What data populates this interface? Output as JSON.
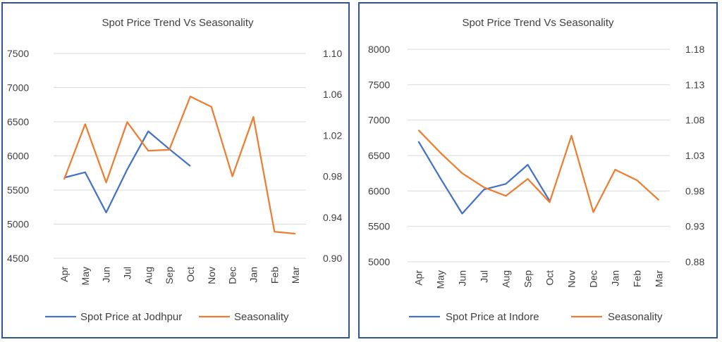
{
  "chart_data": [
    {
      "type": "line",
      "title": "Spot Price Trend Vs Seasonality",
      "categories": [
        "Apr",
        "May",
        "Jun",
        "Jul",
        "Aug",
        "Sep",
        "Oct",
        "Nov",
        "Dec",
        "Jan",
        "Feb",
        "Mar"
      ],
      "y_left": {
        "ticks": [
          "7500",
          "7000",
          "6500",
          "6000",
          "5500",
          "5000",
          "4500"
        ],
        "min": 4500,
        "max": 7500
      },
      "y_right": {
        "ticks": [
          "1.10",
          "1.06",
          "1.02",
          "0.98",
          "0.94",
          "0.90"
        ],
        "min": 0.9,
        "max": 1.1
      },
      "series": [
        {
          "name": "Spot Price at Jodhpur",
          "axis": "left",
          "color": "#4472c4",
          "values": [
            5680,
            5760,
            5170,
            5800,
            6360,
            6100,
            5850,
            null,
            null,
            null,
            null,
            null
          ]
        },
        {
          "name": "Seasonality",
          "axis": "right",
          "color": "#ed7d31",
          "values": [
            0.977,
            1.031,
            0.974,
            1.033,
            1.005,
            1.006,
            1.058,
            1.048,
            0.98,
            1.038,
            0.926,
            0.924
          ]
        }
      ],
      "legend": "bottom",
      "grid": true
    },
    {
      "type": "line",
      "title": "Spot Price Trend Vs Seasonality",
      "categories": [
        "Apr",
        "May",
        "Jun",
        "Jul",
        "Aug",
        "Sep",
        "Oct",
        "Nov",
        "Dec",
        "Jan",
        "Feb",
        "Mar"
      ],
      "y_left": {
        "ticks": [
          "8000",
          "7500",
          "7000",
          "6500",
          "6000",
          "5500",
          "5000"
        ],
        "min": 5000,
        "max": 8000
      },
      "y_right": {
        "ticks": [
          "1.18",
          "1.13",
          "1.08",
          "1.03",
          "0.98",
          "0.93",
          "0.88"
        ],
        "min": 0.88,
        "max": 1.18
      },
      "series": [
        {
          "name": "Spot Price at Indore",
          "axis": "left",
          "color": "#4472c4",
          "values": [
            6700,
            6180,
            5680,
            6020,
            6100,
            6370,
            5860,
            null,
            null,
            null,
            null,
            null
          ]
        },
        {
          "name": "Seasonality",
          "axis": "right",
          "color": "#ed7d31",
          "values": [
            1.066,
            1.034,
            1.005,
            0.985,
            0.973,
            0.997,
            0.964,
            1.058,
            0.95,
            1.01,
            0.995,
            0.967
          ]
        }
      ],
      "legend": "bottom",
      "grid": true
    }
  ]
}
